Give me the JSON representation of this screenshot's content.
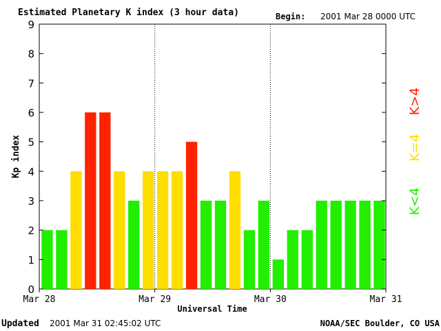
{
  "header": {
    "title": "Estimated Planetary K index (3 hour data)",
    "begin_label": "Begin:",
    "begin_value": "2001 Mar 28 0000 UTC"
  },
  "footer": {
    "updated_label": "Updated",
    "updated_value": "2001 Mar 31 02:45:02 UTC",
    "source": "NOAA/SEC Boulder, CO USA"
  },
  "legend": {
    "low": "K<4",
    "mid": "K=4",
    "high": "K>4"
  },
  "colors": {
    "low": "#22ee00",
    "mid": "#ffdd00",
    "high": "#ff2200"
  },
  "chart_data": {
    "type": "bar",
    "title": "Estimated Planetary K index (3 hour data)",
    "xlabel": "Universal Time",
    "ylabel": "Kp index",
    "ylim": [
      0,
      9
    ],
    "yticks": [
      0,
      1,
      2,
      3,
      4,
      5,
      6,
      7,
      8,
      9
    ],
    "x_tick_labels": [
      "Mar 28",
      "Mar 29",
      "Mar 30",
      "Mar 31"
    ],
    "interval_hours": 3,
    "values": [
      2,
      2,
      4,
      6,
      6,
      4,
      3,
      4,
      4,
      4,
      5,
      3,
      3,
      4,
      2,
      3,
      1,
      2,
      2,
      3,
      3,
      3,
      3,
      3
    ],
    "day_separators": "dotted",
    "legend_placement": "right"
  }
}
